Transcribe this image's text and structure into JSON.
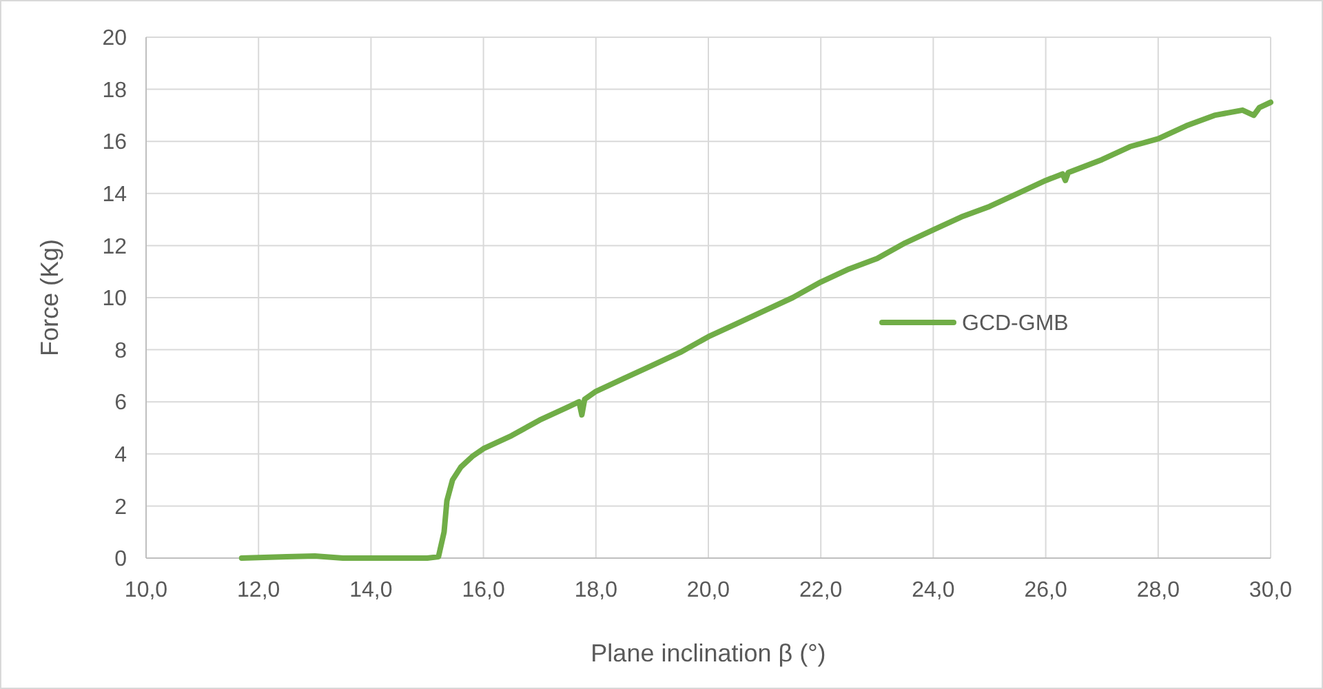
{
  "chart_data": {
    "type": "line",
    "xlabel": "Plane inclination β (°)",
    "ylabel": "Force (Kg)",
    "xlim": [
      10,
      30
    ],
    "ylim": [
      0,
      20
    ],
    "xticks": [
      {
        "value": 10,
        "label": "10,0"
      },
      {
        "value": 12,
        "label": "12,0"
      },
      {
        "value": 14,
        "label": "14,0"
      },
      {
        "value": 16,
        "label": "16,0"
      },
      {
        "value": 18,
        "label": "18,0"
      },
      {
        "value": 20,
        "label": "20,0"
      },
      {
        "value": 22,
        "label": "22,0"
      },
      {
        "value": 24,
        "label": "24,0"
      },
      {
        "value": 26,
        "label": "26,0"
      },
      {
        "value": 28,
        "label": "28,0"
      },
      {
        "value": 30,
        "label": "30,0"
      }
    ],
    "yticks": [
      0,
      2,
      4,
      6,
      8,
      10,
      12,
      14,
      16,
      18,
      20
    ],
    "grid": true,
    "legend": "right",
    "line_style": "solid",
    "series": [
      {
        "name": "GCD-GMB",
        "color": "#70ad47",
        "x": [
          11.7,
          12.5,
          13.0,
          13.5,
          14.0,
          15.0,
          15.2,
          15.3,
          15.35,
          15.45,
          15.6,
          15.8,
          16.0,
          16.5,
          17.0,
          17.5,
          17.7,
          17.75,
          17.8,
          18.0,
          18.5,
          19.0,
          19.5,
          20.0,
          20.5,
          21.0,
          21.5,
          22.0,
          22.5,
          23.0,
          23.5,
          24.0,
          24.5,
          25.0,
          25.5,
          26.0,
          26.3,
          26.35,
          26.4,
          27.0,
          27.5,
          28.0,
          28.5,
          29.0,
          29.5,
          29.7,
          29.8,
          30.0
        ],
        "values": [
          0,
          0.05,
          0.08,
          0,
          0,
          0,
          0.05,
          1.0,
          2.2,
          3.0,
          3.5,
          3.9,
          4.2,
          4.7,
          5.3,
          5.8,
          6.0,
          5.5,
          6.1,
          6.4,
          6.9,
          7.4,
          7.9,
          8.5,
          9.0,
          9.5,
          10.0,
          10.6,
          11.1,
          11.5,
          12.1,
          12.6,
          13.1,
          13.5,
          14.0,
          14.5,
          14.75,
          14.5,
          14.8,
          15.3,
          15.8,
          16.1,
          16.6,
          17.0,
          17.2,
          17.0,
          17.3,
          17.5
        ]
      }
    ]
  }
}
